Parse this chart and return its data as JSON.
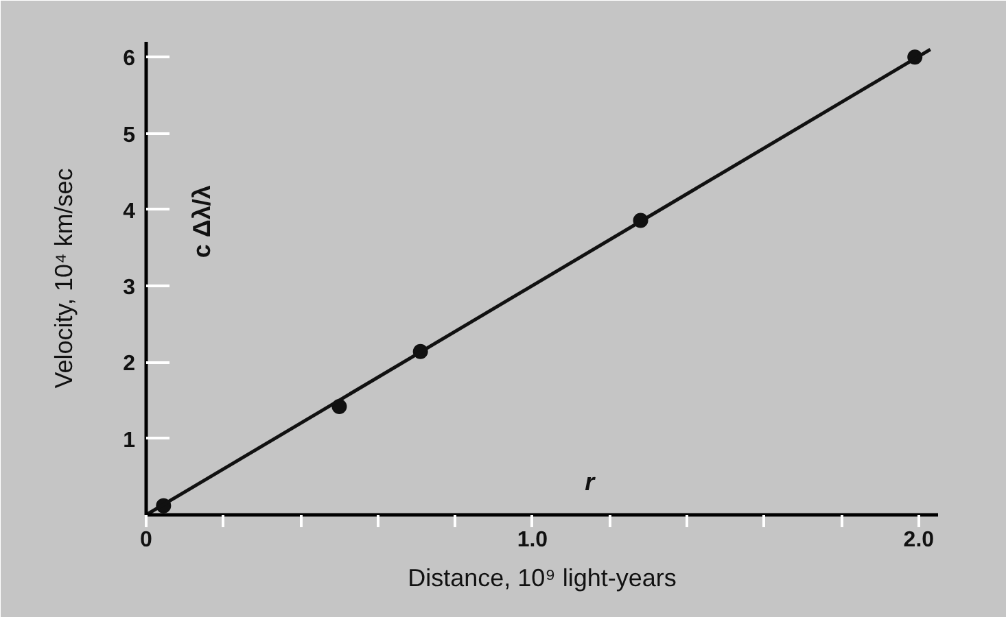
{
  "chart_data": {
    "type": "scatter",
    "xlabel": "Distance, 10⁹ light-years",
    "ylabel": "Velocity, 10⁴ km/sec",
    "annotations": [
      "c Δλ/λ",
      "r"
    ],
    "xlim": [
      0,
      2.05
    ],
    "ylim": [
      0,
      6.2
    ],
    "xticks": [
      0,
      {
        "value": 0.2,
        "label": null
      },
      {
        "value": 0.4,
        "label": null
      },
      {
        "value": 0.6,
        "label": null
      },
      {
        "value": 0.8,
        "label": null
      },
      {
        "value": 1,
        "label": "1.0"
      },
      {
        "value": 1.2,
        "label": null
      },
      {
        "value": 1.4,
        "label": null
      },
      {
        "value": 1.6,
        "label": null
      },
      {
        "value": 1.8,
        "label": null
      },
      {
        "value": 2,
        "label": "2.0"
      }
    ],
    "yticks": [
      1,
      2,
      3,
      4,
      5,
      6
    ],
    "grid": false,
    "marker": "circle",
    "series": [
      {
        "color": "#111111",
        "x": [
          0.045,
          0.5,
          0.71,
          1.28,
          1.99
        ],
        "values": [
          0.12,
          1.42,
          2.14,
          3.86,
          6.0
        ]
      },
      {
        "type": "line",
        "marker": "none",
        "color": "#111111",
        "x": [
          0,
          2.03
        ],
        "values": [
          0,
          6.1
        ]
      }
    ]
  }
}
